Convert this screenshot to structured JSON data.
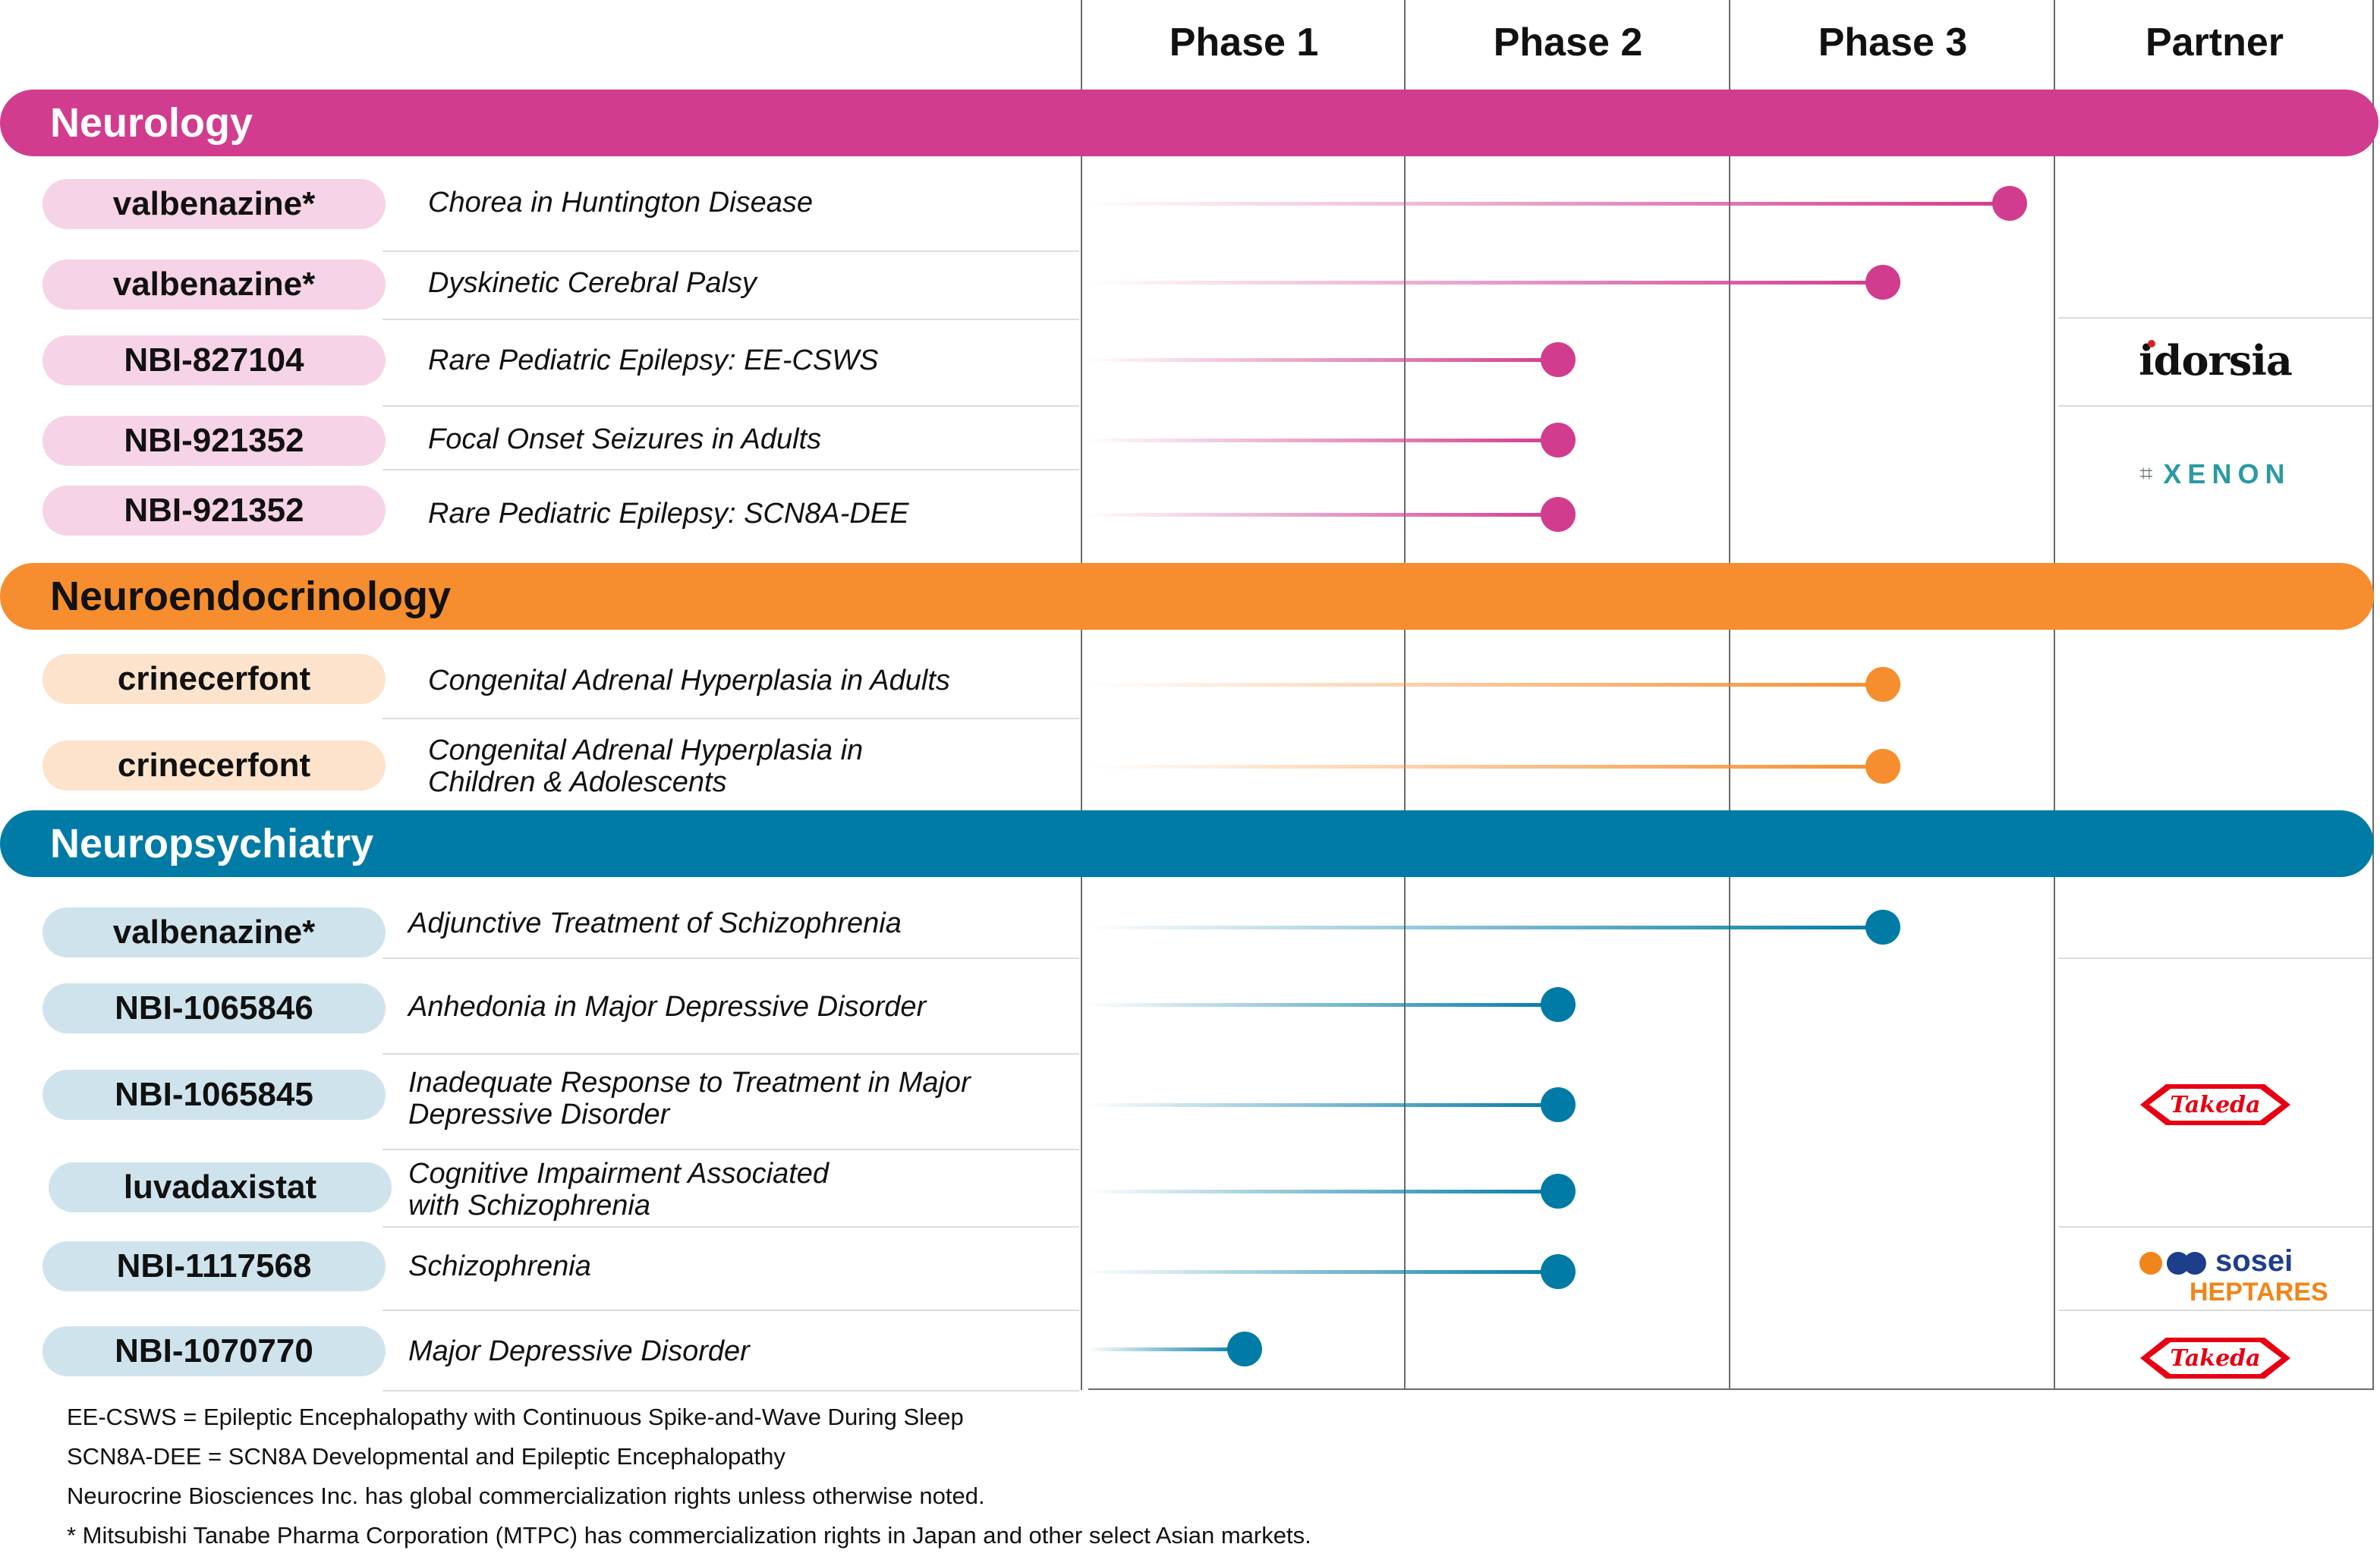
{
  "phases": [
    "Phase 1",
    "Phase 2",
    "Phase 3",
    "Partner"
  ],
  "colors": {
    "neurology": "#d13c8f",
    "neurology_pill": "#f6d3e6",
    "neuroendocrinology": "#f68d2e",
    "neuroendocrinology_pill": "#fde3cc",
    "neuropsychiatry": "#007ba5",
    "neuropsychiatry_pill": "#cfe3ec"
  },
  "areas": [
    {
      "key": "neurology",
      "label": "Neurology"
    },
    {
      "key": "neuroendocrinology",
      "label": "Neuroendocrinology"
    },
    {
      "key": "neuropsychiatry",
      "label": "Neuropsychiatry"
    }
  ],
  "programs": [
    {
      "drug": "valbenazine*",
      "indication": "Chorea in Huntington Disease",
      "area": "neurology",
      "phase": 3,
      "stage_fraction": 0.86
    },
    {
      "drug": "valbenazine*",
      "indication": "Dyskinetic Cerebral Palsy",
      "area": "neurology",
      "phase": 3,
      "stage_fraction": 0.47
    },
    {
      "drug": "NBI-827104",
      "indication": "Rare Pediatric Epilepsy: EE-CSWS",
      "area": "neurology",
      "phase": 2,
      "stage_fraction": 0.47
    },
    {
      "drug": "NBI-921352",
      "indication": "Focal Onset Seizures in Adults",
      "area": "neurology",
      "phase": 2,
      "stage_fraction": 0.47
    },
    {
      "drug": "NBI-921352",
      "indication": "Rare Pediatric Epilepsy: SCN8A-DEE",
      "area": "neurology",
      "phase": 2,
      "stage_fraction": 0.47
    },
    {
      "drug": "crinecerfont",
      "indication": "Congenital Adrenal Hyperplasia in Adults",
      "area": "neuroendocrinology",
      "phase": 3,
      "stage_fraction": 0.47
    },
    {
      "drug": "crinecerfont",
      "indication": "Congenital Adrenal Hyperplasia in Children & Adolescents",
      "area": "neuroendocrinology",
      "phase": 3,
      "stage_fraction": 0.47
    },
    {
      "drug": "valbenazine*",
      "indication": "Adjunctive Treatment of Schizophrenia",
      "area": "neuropsychiatry",
      "phase": 3,
      "stage_fraction": 0.47
    },
    {
      "drug": "NBI-1065846",
      "indication": "Anhedonia in Major Depressive Disorder",
      "area": "neuropsychiatry",
      "phase": 2,
      "stage_fraction": 0.47
    },
    {
      "drug": "NBI-1065845",
      "indication": "Inadequate Response to Treatment in Major Depressive Disorder",
      "area": "neuropsychiatry",
      "phase": 2,
      "stage_fraction": 0.47
    },
    {
      "drug": "luvadaxistat",
      "indication": "Cognitive Impairment Associated with Schizophrenia",
      "area": "neuropsychiatry",
      "phase": 2,
      "stage_fraction": 0.47
    },
    {
      "drug": "NBI-1117568",
      "indication": "Schizophrenia",
      "area": "neuropsychiatry",
      "phase": 2,
      "stage_fraction": 0.47
    },
    {
      "drug": "NBI-1070770",
      "indication": "Major Depressive Disorder",
      "area": "neuropsychiatry",
      "phase": 1,
      "stage_fraction": 0.5
    }
  ],
  "partners": {
    "idorsia": "idorsia",
    "xenon": "XENON",
    "takeda": "Takeda",
    "sosei_line1": "sosei",
    "sosei_line2": "HEPTARES"
  },
  "footnotes": [
    "EE-CSWS = Epileptic Encephalopathy with Continuous Spike-and-Wave During Sleep",
    "SCN8A-DEE = SCN8A Developmental and Epileptic Encephalopathy",
    "Neurocrine Biosciences Inc. has global commercialization rights unless otherwise noted.",
    "* Mitsubishi Tanabe Pharma Corporation (MTPC) has commercialization rights in Japan and other select Asian markets."
  ]
}
